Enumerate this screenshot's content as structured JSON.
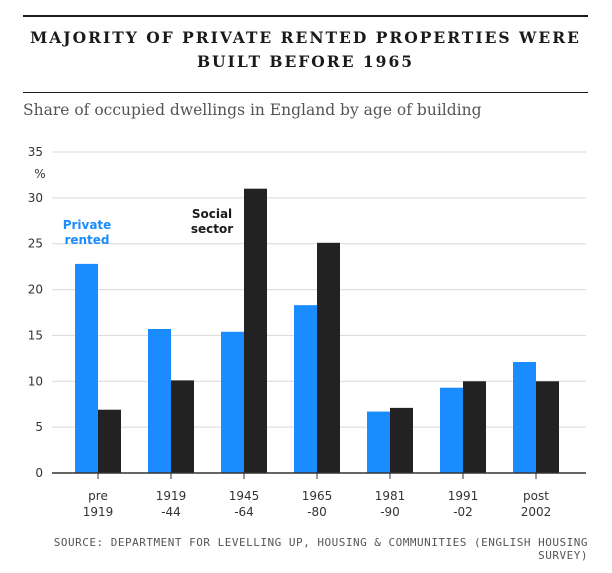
{
  "title_lines": [
    "MAJORITY OF PRIVATE RENTED PROPERTIES WERE",
    "BUILT BEFORE 1965"
  ],
  "subtitle": "Share of occupied dwellings in England by age of building",
  "source": "SOURCE: DEPARTMENT FOR LEVELLING UP, HOUSING & COMMUNITIES (ENGLISH HOUSING SURVEY)",
  "colors": {
    "private": "#1a8cff",
    "social": "#222222",
    "grid": "#d9d9d9",
    "axis": "#333333"
  },
  "chart_data": {
    "type": "bar",
    "title": "MAJORITY OF PRIVATE RENTED PROPERTIES WERE BUILT BEFORE 1965",
    "subtitle": "Share of occupied dwellings in England by age of building",
    "ylabel": "%",
    "ylim": [
      0,
      35
    ],
    "yticks": [
      0,
      5,
      10,
      15,
      20,
      25,
      30,
      35
    ],
    "grid": true,
    "categories": [
      [
        "pre",
        "1919"
      ],
      [
        "1919",
        "-44"
      ],
      [
        "1945",
        "-64"
      ],
      [
        "1965",
        "-80"
      ],
      [
        "1981",
        "-90"
      ],
      [
        "1991",
        "-02"
      ],
      [
        "post",
        "2002"
      ]
    ],
    "series": [
      {
        "name": "Private rented",
        "label_lines": [
          "Private",
          "rented"
        ],
        "color": "#1a8cff",
        "values": [
          22.8,
          15.7,
          15.4,
          18.3,
          6.7,
          9.3,
          12.1
        ]
      },
      {
        "name": "Social sector",
        "label_lines": [
          "Social",
          "sector"
        ],
        "color": "#222222",
        "values": [
          6.9,
          10.1,
          31.0,
          25.1,
          7.1,
          10.0,
          10.0
        ]
      }
    ]
  }
}
